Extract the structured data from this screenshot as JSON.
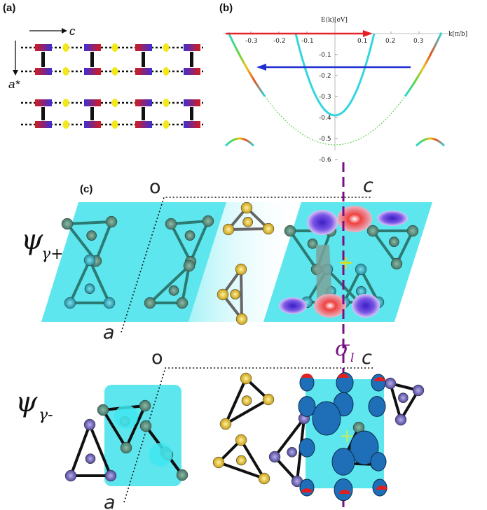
{
  "panel_a": {
    "label": "(a)",
    "axis_c": "c",
    "axis_a": "a*"
  },
  "panel_b": {
    "label": "(b)",
    "ylabel": "E(k)[eV]",
    "xlabel": "k[π/b]",
    "xticks": [
      "-0.3",
      "-0.2",
      "-0.1",
      "0.1",
      "0.2",
      "0.3"
    ],
    "yticks": [
      "-0.1",
      "-0.2",
      "-0.3",
      "-0.4",
      "-0.5",
      "-0.6"
    ],
    "colors": {
      "upper_arrow": "#e8202a",
      "lower_arrow": "#1f2fd0",
      "band": "#33d6e0",
      "dotted_band": "#6fd35f"
    }
  },
  "panel_c": {
    "label": "(c)",
    "top_origin": "o",
    "top_c": "c",
    "top_a": "a",
    "psi_top": "ψ",
    "psi_top_sub": "γ+",
    "sigma": "σ",
    "sigma_sub": "l",
    "bottom_origin": "o",
    "bottom_c": "c",
    "bottom_a": "a",
    "psi_bottom": "ψ",
    "psi_bottom_sub": "γ-",
    "colors": {
      "cell": "#5ee6ef",
      "atom_teal": "#2aa9b8",
      "atom_yellow": "#e6c21a",
      "atom_purple": "#6a5fb0",
      "mirror": "#7a0f85"
    }
  },
  "chart_data": {
    "type": "line",
    "title": "",
    "xlabel": "k[π/b]",
    "ylabel": "E(k)[eV]",
    "xlim": [
      -0.38,
      0.38
    ],
    "ylim": [
      -0.65,
      0.02
    ],
    "series": [
      {
        "x": [
          -0.14,
          -0.1,
          -0.05,
          0.0,
          0.05,
          0.1,
          0.14
        ],
        "y": [
          0.0,
          -0.15,
          -0.31,
          -0.39,
          -0.31,
          -0.15,
          0.0
        ]
      },
      {
        "x": [
          -0.37,
          -0.3,
          -0.2,
          -0.1,
          0.0,
          0.1,
          0.2,
          0.3,
          0.37
        ],
        "y": [
          -0.02,
          -0.17,
          -0.34,
          -0.48,
          -0.53,
          -0.48,
          -0.34,
          -0.17,
          -0.02
        ]
      },
      {
        "x": [
          -0.38,
          -0.36,
          -0.34,
          -0.32,
          -0.3
        ],
        "y": [
          -0.6,
          -0.52,
          -0.5,
          -0.52,
          -0.6
        ]
      },
      {
        "x": [
          0.3,
          0.32,
          0.34,
          0.36,
          0.38
        ],
        "y": [
          -0.6,
          -0.52,
          -0.5,
          -0.52,
          -0.6
        ]
      }
    ]
  }
}
